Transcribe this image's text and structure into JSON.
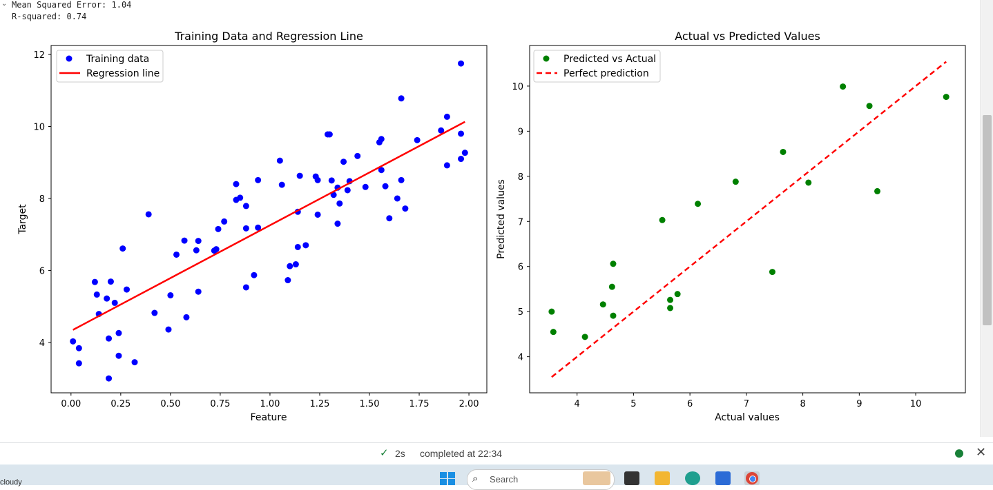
{
  "console": {
    "collapse_icon": "chevron-down-icon",
    "lines": [
      "Mean Squared Error: 1.04",
      "R-squared: 0.74"
    ]
  },
  "status": {
    "check_icon": "check-icon",
    "elapsed": "2s",
    "completed": "completed at 22:34",
    "close_icon": "close-icon"
  },
  "taskbar": {
    "weather": "cloudy",
    "search_placeholder": "Search"
  },
  "colors": {
    "training_points": "#0000ff",
    "regression_line": "#ff0000",
    "predicted_points": "#008000",
    "perfect_line": "#ff0000"
  },
  "chart_data": [
    {
      "type": "scatter",
      "title": "Training Data and Regression Line",
      "xlabel": "Feature",
      "ylabel": "Target",
      "xlim": [
        -0.1,
        2.09
      ],
      "ylim": [
        2.6,
        12.25
      ],
      "xticks": [
        0.0,
        0.25,
        0.5,
        0.75,
        1.0,
        1.25,
        1.5,
        1.75,
        2.0
      ],
      "xtick_labels": [
        "0.00",
        "0.25",
        "0.50",
        "0.75",
        "1.00",
        "1.25",
        "1.50",
        "1.75",
        "2.00"
      ],
      "yticks": [
        4,
        6,
        8,
        10,
        12
      ],
      "ytick_labels": [
        "4",
        "6",
        "8",
        "10",
        "12"
      ],
      "legend": "top-left",
      "series": [
        {
          "name": "Training data",
          "kind": "scatter",
          "points": [
            [
              0.01,
              4.03
            ],
            [
              0.04,
              3.84
            ],
            [
              0.04,
              3.42
            ],
            [
              0.12,
              5.68
            ],
            [
              0.13,
              5.33
            ],
            [
              0.14,
              4.79
            ],
            [
              0.18,
              5.22
            ],
            [
              0.19,
              4.11
            ],
            [
              0.2,
              5.69
            ],
            [
              0.19,
              3.0
            ],
            [
              0.22,
              5.1
            ],
            [
              0.24,
              4.26
            ],
            [
              0.24,
              3.63
            ],
            [
              0.26,
              6.61
            ],
            [
              0.28,
              5.47
            ],
            [
              0.32,
              3.45
            ],
            [
              0.39,
              7.56
            ],
            [
              0.42,
              4.82
            ],
            [
              0.49,
              4.36
            ],
            [
              0.5,
              5.31
            ],
            [
              0.53,
              6.44
            ],
            [
              0.57,
              6.83
            ],
            [
              0.58,
              4.7
            ],
            [
              0.63,
              6.56
            ],
            [
              0.64,
              6.82
            ],
            [
              0.64,
              5.41
            ],
            [
              0.72,
              6.55
            ],
            [
              0.73,
              6.59
            ],
            [
              0.74,
              7.15
            ],
            [
              0.77,
              7.36
            ],
            [
              0.83,
              8.4
            ],
            [
              0.83,
              7.96
            ],
            [
              0.85,
              8.02
            ],
            [
              0.88,
              7.79
            ],
            [
              0.88,
              7.17
            ],
            [
              0.88,
              5.53
            ],
            [
              0.92,
              5.87
            ],
            [
              0.94,
              7.19
            ],
            [
              0.94,
              8.51
            ],
            [
              1.05,
              9.05
            ],
            [
              1.06,
              8.38
            ],
            [
              1.09,
              5.73
            ],
            [
              1.1,
              6.12
            ],
            [
              1.13,
              6.17
            ],
            [
              1.14,
              6.65
            ],
            [
              1.14,
              7.63
            ],
            [
              1.15,
              8.63
            ],
            [
              1.18,
              6.7
            ],
            [
              1.23,
              8.61
            ],
            [
              1.24,
              8.51
            ],
            [
              1.24,
              7.55
            ],
            [
              1.29,
              9.78
            ],
            [
              1.3,
              9.78
            ],
            [
              1.31,
              8.5
            ],
            [
              1.32,
              8.1
            ],
            [
              1.34,
              8.3
            ],
            [
              1.34,
              7.3
            ],
            [
              1.35,
              7.86
            ],
            [
              1.37,
              9.02
            ],
            [
              1.39,
              8.23
            ],
            [
              1.4,
              8.48
            ],
            [
              1.44,
              9.18
            ],
            [
              1.48,
              8.32
            ],
            [
              1.55,
              9.56
            ],
            [
              1.56,
              9.65
            ],
            [
              1.56,
              8.79
            ],
            [
              1.58,
              8.34
            ],
            [
              1.6,
              7.45
            ],
            [
              1.64,
              8.0
            ],
            [
              1.66,
              10.78
            ],
            [
              1.66,
              8.51
            ],
            [
              1.68,
              7.72
            ],
            [
              1.74,
              9.62
            ],
            [
              1.86,
              9.89
            ],
            [
              1.89,
              10.27
            ],
            [
              1.89,
              8.92
            ],
            [
              1.96,
              9.8
            ],
            [
              1.96,
              11.75
            ],
            [
              1.96,
              9.1
            ],
            [
              1.98,
              9.27
            ]
          ]
        },
        {
          "name": "Regression line",
          "kind": "line",
          "x": [
            0.01,
            1.98
          ],
          "y": [
            4.35,
            10.13
          ]
        }
      ]
    },
    {
      "type": "scatter",
      "title": "Actual vs Predicted Values",
      "xlabel": "Actual values",
      "ylabel": "Predicted values",
      "xlim": [
        3.16,
        10.88
      ],
      "ylim": [
        3.2,
        10.9
      ],
      "xticks": [
        4,
        5,
        6,
        7,
        8,
        9,
        10
      ],
      "xtick_labels": [
        "4",
        "5",
        "6",
        "7",
        "8",
        "9",
        "10"
      ],
      "yticks": [
        4,
        5,
        6,
        7,
        8,
        9,
        10
      ],
      "ytick_labels": [
        "4",
        "5",
        "6",
        "7",
        "8",
        "9",
        "10"
      ],
      "legend": "top-left",
      "series": [
        {
          "name": "Predicted vs Actual",
          "kind": "scatter",
          "points": [
            [
              3.55,
              5.0
            ],
            [
              3.58,
              4.55
            ],
            [
              4.14,
              4.44
            ],
            [
              4.46,
              5.16
            ],
            [
              4.62,
              5.55
            ],
            [
              4.64,
              6.06
            ],
            [
              4.64,
              4.91
            ],
            [
              5.51,
              7.03
            ],
            [
              5.65,
              5.26
            ],
            [
              5.65,
              5.08
            ],
            [
              5.78,
              5.39
            ],
            [
              6.14,
              7.39
            ],
            [
              6.81,
              7.88
            ],
            [
              7.46,
              5.88
            ],
            [
              7.65,
              8.54
            ],
            [
              8.1,
              7.86
            ],
            [
              8.71,
              9.99
            ],
            [
              9.18,
              9.56
            ],
            [
              9.32,
              7.67
            ],
            [
              10.54,
              9.76
            ]
          ]
        },
        {
          "name": "Perfect prediction",
          "kind": "dashed-line",
          "x": [
            3.55,
            10.54
          ],
          "y": [
            3.55,
            10.54
          ]
        }
      ]
    }
  ]
}
